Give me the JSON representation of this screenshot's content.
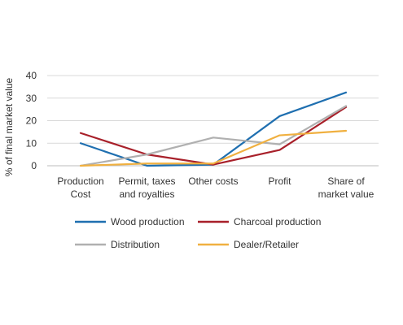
{
  "chart_data": {
    "type": "line",
    "title": "",
    "xlabel": "",
    "ylabel": "% of final market value",
    "ylim": [
      0,
      40
    ],
    "yticks": [
      0,
      10,
      20,
      30,
      40
    ],
    "grid": "horizontal",
    "legend_position": "bottom",
    "categories": [
      [
        "Production",
        "Cost"
      ],
      [
        "Permit, taxes",
        "and royalties"
      ],
      [
        "Other costs"
      ],
      [
        "Profit"
      ],
      [
        "Share of",
        "market value"
      ]
    ],
    "series": [
      {
        "name": "Wood production",
        "color": "#1f6fb0",
        "values": [
          10,
          0,
          0.5,
          22,
          32.5
        ]
      },
      {
        "name": "Charcoal production",
        "color": "#a8202a",
        "values": [
          14.5,
          5,
          0.5,
          7,
          26
        ]
      },
      {
        "name": "Distribution",
        "color": "#b0b0b0",
        "values": [
          0,
          5,
          12.5,
          9.5,
          26.5
        ]
      },
      {
        "name": "Dealer/Retailer",
        "color": "#f0b040",
        "values": [
          0,
          1,
          1,
          13.5,
          15.5
        ]
      }
    ]
  }
}
